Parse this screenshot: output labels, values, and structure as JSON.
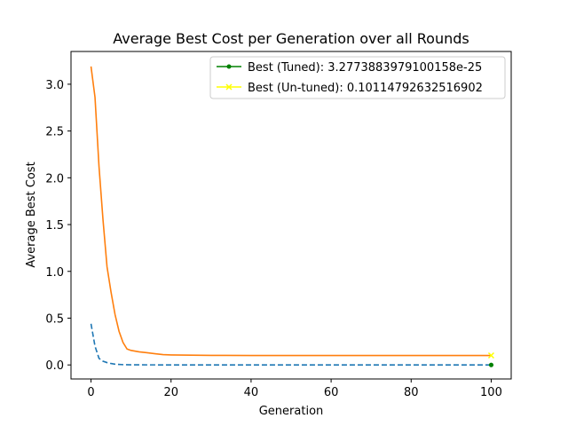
{
  "chart_data": {
    "type": "line",
    "title": "Average Best Cost per Generation over all Rounds",
    "xlabel": "Generation",
    "ylabel": "Average Best Cost",
    "xlim": [
      -5,
      105
    ],
    "ylim": [
      -0.15,
      3.35
    ],
    "x_ticks": [
      0,
      20,
      40,
      60,
      80,
      100
    ],
    "y_ticks": [
      0.0,
      0.5,
      1.0,
      1.5,
      2.0,
      2.5,
      3.0
    ],
    "x_tick_labels": [
      "0",
      "20",
      "40",
      "60",
      "80",
      "100"
    ],
    "y_tick_labels": [
      "0.0",
      "0.5",
      "1.0",
      "1.5",
      "2.0",
      "2.5",
      "3.0"
    ],
    "grid": false,
    "legend_position": "top-right",
    "series": [
      {
        "key": "tuned_curve",
        "color": "#1f77b4",
        "dash": true,
        "x": [
          0,
          1,
          2,
          3,
          4,
          5,
          6,
          8,
          10,
          15,
          20,
          40,
          60,
          80,
          100
        ],
        "y": [
          0.44,
          0.2,
          0.07,
          0.04,
          0.025,
          0.015,
          0.008,
          0.003,
          0.001,
          0.0005,
          0.0002,
          0.0001,
          0.0001,
          0.0001,
          0.0001
        ]
      },
      {
        "key": "untuned_curve",
        "color": "#ff7f0e",
        "dash": false,
        "x": [
          0,
          1,
          2,
          3,
          4,
          5,
          6,
          7,
          8,
          9,
          10,
          12,
          14,
          16,
          18,
          20,
          25,
          30,
          40,
          60,
          80,
          100
        ],
        "y": [
          3.19,
          2.86,
          2.12,
          1.55,
          1.05,
          0.78,
          0.54,
          0.36,
          0.24,
          0.17,
          0.155,
          0.14,
          0.13,
          0.12,
          0.11,
          0.107,
          0.104,
          0.102,
          0.101,
          0.101,
          0.101,
          0.101
        ]
      },
      {
        "key": "best_tuned",
        "name": "Best (Tuned): 3.2773883979100158e-25",
        "color": "#008000",
        "marker": "circle",
        "x": [
          100
        ],
        "y": [
          0.0
        ]
      },
      {
        "key": "best_untuned",
        "name": "Best (Un-tuned): 0.10114792632516902",
        "color": "#ffff00",
        "marker": "x",
        "x": [
          100
        ],
        "y": [
          0.10114792632516902
        ]
      }
    ]
  }
}
